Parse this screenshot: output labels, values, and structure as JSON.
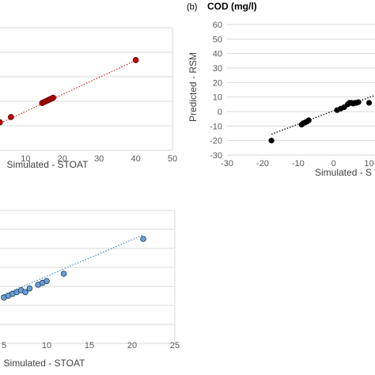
{
  "chart_data": [
    {
      "type": "scatter",
      "xlabel": "Simulated - STOAT",
      "ylabel": "",
      "xlim": [
        0,
        50
      ],
      "x_ticks": [
        10,
        20,
        30,
        40,
        50
      ],
      "grid": true,
      "marker_color": "#c00000",
      "trendline": {
        "style": "dotted",
        "color": "#e03030",
        "slope": 0.97,
        "intercept": 0.5
      },
      "series": [
        {
          "x": [
            0.5,
            1,
            1.5,
            2,
            3,
            1,
            6,
            14.5,
            15,
            15.5,
            16,
            16.5,
            17,
            17.5,
            40
          ],
          "y": [
            0.8,
            1.5,
            2.5,
            3.5,
            4,
            5,
            7,
            15,
            15.5,
            16,
            16.5,
            17,
            17.5,
            18,
            39.5
          ]
        }
      ]
    },
    {
      "type": "scatter",
      "panel_label": "(b)",
      "title": "COD (mg/l)",
      "xlabel": "Simulated - S",
      "ylabel": "Predicted - RSM",
      "xlim": [
        -30,
        13
      ],
      "ylim": [
        -30,
        60
      ],
      "x_ticks": [
        -30,
        -20,
        -10,
        0,
        10
      ],
      "y_ticks": [
        -30,
        -20,
        -10,
        0,
        10,
        20,
        30,
        40,
        50,
        60
      ],
      "grid": true,
      "marker_color": "#000000",
      "trendline": {
        "style": "dotted",
        "color": "#000000",
        "slope": 0.92,
        "intercept": 0.5
      },
      "series": [
        {
          "x": [
            -17.5,
            -9,
            -8.5,
            -8,
            -7.5,
            -7,
            1,
            2,
            3,
            4,
            4.5,
            5,
            5.5,
            6,
            6.5,
            7,
            10
          ],
          "y": [
            -20,
            -9,
            -8,
            -7.5,
            -7,
            -6,
            1,
            2,
            3,
            5,
            6,
            6,
            5.5,
            6,
            6,
            6.5,
            6
          ]
        }
      ]
    },
    {
      "type": "scatter",
      "xlabel": "Simulated - STOAT",
      "ylabel": "",
      "xlim": [
        0,
        25
      ],
      "x_ticks": [
        5,
        10,
        15,
        20,
        25
      ],
      "grid": true,
      "marker_color": "#6a9fd4",
      "trendline": {
        "style": "dotted",
        "color": "#4f8ecf",
        "slope": 1.0,
        "intercept": 0.3
      },
      "series": [
        {
          "x": [
            0.5,
            1,
            2,
            3,
            3.5,
            4,
            5,
            5.5,
            6,
            6.5,
            7,
            7.5,
            8,
            9,
            9.5,
            10,
            12,
            21.3
          ],
          "y": [
            1,
            1.5,
            2.5,
            3,
            3.5,
            4,
            4.5,
            5,
            5.5,
            6,
            6.5,
            6,
            7,
            8,
            8.5,
            9,
            11,
            20.5
          ]
        }
      ]
    }
  ]
}
